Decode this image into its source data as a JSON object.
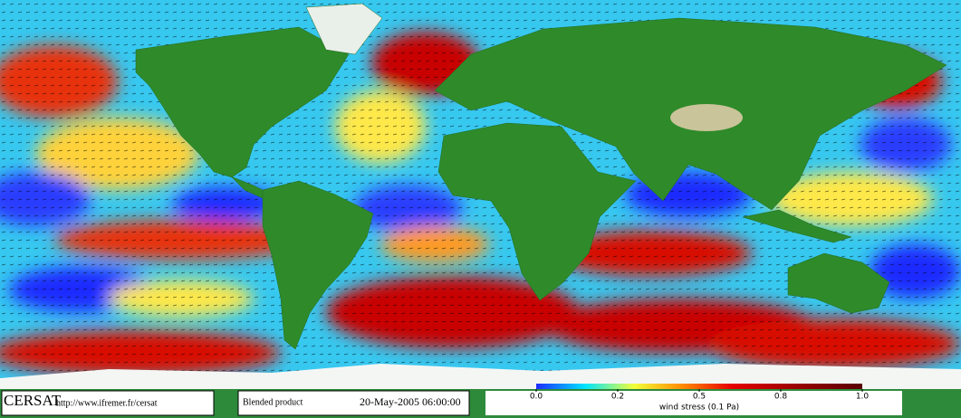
{
  "footer": {
    "logo": "CERSAT",
    "url": "http://www.ifremer.fr/cersat",
    "product": "Blended product",
    "date": "20-May-2005 06:00:00"
  },
  "colorbar": {
    "ticks": [
      {
        "value": 0,
        "label": "0.0"
      },
      0.2,
      0.5,
      0.8,
      {
        "value": 1,
        "label": "1.0"
      }
    ],
    "label": "wind stress (0.1 Pa)"
  }
}
